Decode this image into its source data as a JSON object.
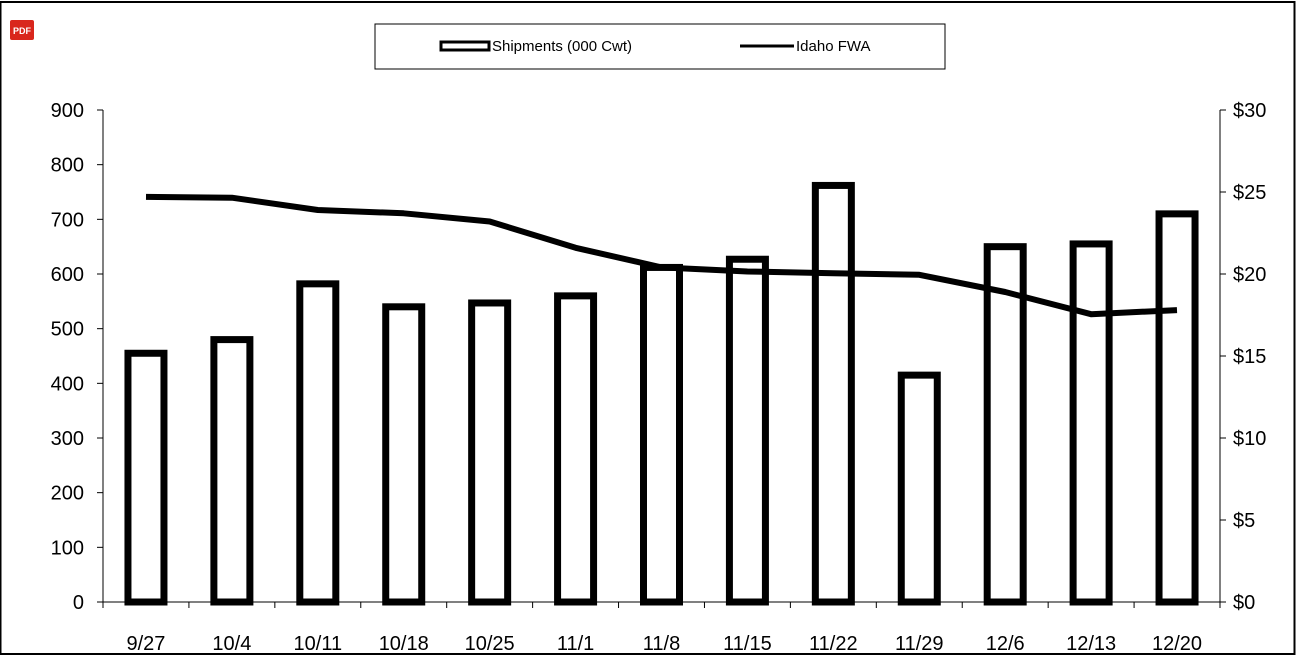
{
  "colors": {
    "bar_stroke": "#000000",
    "bar_fill": "#ffffff",
    "line": "#000000",
    "pdf_icon": "#d9261c"
  },
  "icons": {
    "corner": "pdf-icon"
  },
  "pdf_icon_label": "PDF",
  "chart_data": {
    "type": "bar",
    "categories": [
      "9/27",
      "10/4",
      "10/11",
      "10/18",
      "10/25",
      "11/1",
      "11/8",
      "11/15",
      "11/22",
      "11/29",
      "12/6",
      "12/13",
      "12/20"
    ],
    "series": [
      {
        "name": "Shipments (000 Cwt)",
        "type": "bar",
        "axis": "left",
        "values": [
          455,
          480,
          582,
          540,
          547,
          560,
          612,
          627,
          762,
          415,
          650,
          655,
          710
        ]
      },
      {
        "name": "Idaho FWA",
        "type": "line",
        "axis": "right",
        "values": [
          24.7,
          24.65,
          23.9,
          23.7,
          23.2,
          21.6,
          20.4,
          20.15,
          20.05,
          19.95,
          18.9,
          17.55,
          17.8
        ]
      }
    ],
    "y_left": {
      "min": 0,
      "max": 900,
      "step": 100,
      "ticks": [
        "0",
        "100",
        "200",
        "300",
        "400",
        "500",
        "600",
        "700",
        "800",
        "900"
      ]
    },
    "y_right": {
      "min": 0,
      "max": 30,
      "step": 5,
      "ticks": [
        "$0",
        "$5",
        "$10",
        "$15",
        "$20",
        "$25",
        "$30"
      ]
    },
    "legend": {
      "position": "top-center",
      "entries": [
        "Shipments (000 Cwt)",
        "Idaho FWA"
      ]
    },
    "grid": false
  }
}
